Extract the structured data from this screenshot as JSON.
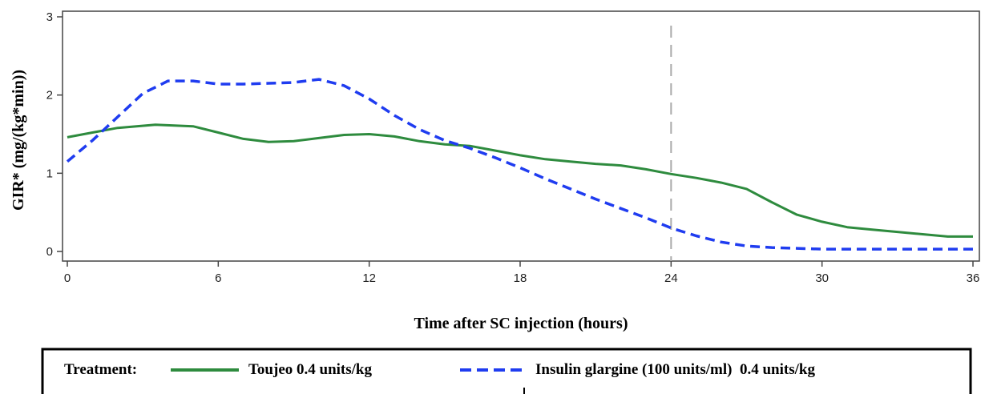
{
  "chart_data": {
    "type": "line",
    "xlabel": "Time after SC injection (hours)",
    "ylabel": "GIR* (mg/(kg*min))",
    "xlim": [
      0,
      36
    ],
    "ylim": [
      0,
      3
    ],
    "xticks": [
      "0",
      "6",
      "12",
      "18",
      "24",
      "30",
      "36"
    ],
    "yticks": [
      "0",
      "1",
      "2",
      "3"
    ],
    "grid": false,
    "reference_line": {
      "x": 24,
      "style": "dashed",
      "color": "#aaaaaa"
    },
    "series": [
      {
        "name": "Toujeo 0.4 units/kg",
        "color": "#2e8b3e",
        "style": "solid",
        "x": [
          0,
          1,
          2,
          3.5,
          5,
          6,
          7,
          8,
          9,
          10,
          11,
          12,
          13,
          14,
          15,
          16,
          17,
          18,
          19,
          20,
          21,
          22,
          23,
          24,
          25,
          26,
          27,
          28,
          29,
          30,
          31,
          32,
          33,
          34,
          35,
          36
        ],
        "values": [
          1.46,
          1.52,
          1.58,
          1.62,
          1.6,
          1.52,
          1.44,
          1.4,
          1.41,
          1.45,
          1.49,
          1.5,
          1.47,
          1.41,
          1.37,
          1.35,
          1.29,
          1.23,
          1.18,
          1.15,
          1.12,
          1.1,
          1.05,
          0.99,
          0.94,
          0.88,
          0.8,
          0.63,
          0.47,
          0.38,
          0.31,
          0.28,
          0.25,
          0.22,
          0.19,
          0.19
        ]
      },
      {
        "name": "Insulin glargine (100 units/ml) 0.4 units/kg",
        "color": "#1f3cf0",
        "style": "dashed",
        "x": [
          0,
          1,
          2,
          3,
          4,
          5,
          6,
          7,
          8,
          9,
          10,
          11,
          12,
          13,
          14,
          15,
          16,
          17,
          18,
          19,
          20,
          21,
          22,
          23,
          24,
          25,
          26,
          27,
          28,
          29,
          30,
          31,
          32,
          33,
          34,
          35,
          36
        ],
        "values": [
          1.15,
          1.42,
          1.72,
          2.02,
          2.18,
          2.18,
          2.14,
          2.14,
          2.15,
          2.16,
          2.2,
          2.12,
          1.95,
          1.74,
          1.56,
          1.42,
          1.32,
          1.2,
          1.07,
          0.93,
          0.8,
          0.67,
          0.55,
          0.43,
          0.3,
          0.2,
          0.12,
          0.07,
          0.05,
          0.04,
          0.03,
          0.03,
          0.03,
          0.03,
          0.03,
          0.03,
          0.03
        ]
      }
    ],
    "legend": {
      "placement": "bottom",
      "title": "Treatment:",
      "items": [
        "Toujeo 0.4 units/kg",
        "Insulin glargine (100 units/ml)  0.4 units/kg"
      ]
    }
  }
}
